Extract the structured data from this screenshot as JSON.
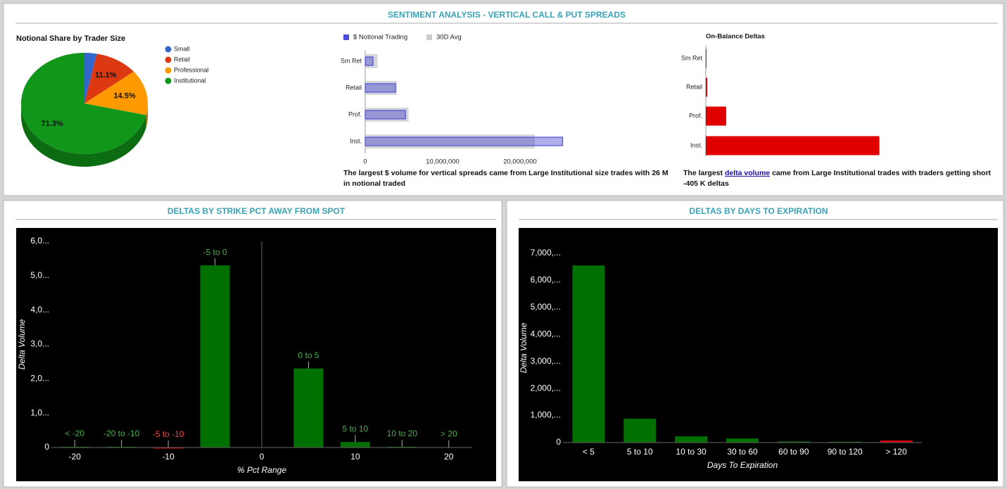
{
  "header": {
    "title": "SENTIMENT ANALYSIS - VERTICAL CALL & PUT SPREADS"
  },
  "chart_data": [
    {
      "type": "pie",
      "title": "Notional Share by Trader Size",
      "categories": [
        "Small",
        "Retail",
        "Professional",
        "Institutional"
      ],
      "values": [
        3.1,
        11.1,
        14.5,
        71.3
      ],
      "value_labels": [
        null,
        "11.1%",
        "14.5%",
        "71.3%"
      ],
      "colors": [
        "#3366cc",
        "#dc3912",
        "#ff9900",
        "#109618"
      ],
      "legend": "right"
    },
    {
      "type": "hbar",
      "categories": [
        "Sm Ret",
        "Retail",
        "Prof.",
        "Inst."
      ],
      "series": [
        {
          "name": "$ Notional Trading",
          "color": "#4c4cd8",
          "values": [
            1000000,
            3900000,
            5200000,
            25500000
          ]
        },
        {
          "name": "30D Avg",
          "color": "#cccccc",
          "values": [
            1600000,
            4100000,
            5600000,
            21900000
          ]
        }
      ],
      "xlim": [
        0,
        35000000
      ],
      "xticks": [
        0,
        {
          "value": 10000000,
          "label": "10,000,000"
        },
        {
          "value": 20000000,
          "label": "20,000,000"
        }
      ],
      "legend": "top",
      "note": "The largest $ volume for vertical spreads came from Large Institutional size trades with 26 M in notional traded"
    },
    {
      "type": "hbar",
      "title": "On-Balance Deltas",
      "categories": [
        "Sm Ret",
        "Retail",
        "Prof.",
        "Inst."
      ],
      "values": [
        1600,
        3300,
        47500,
        405000
      ],
      "colors": [
        "#0a7a0a",
        "#e00000",
        "#e00000",
        "#e00000"
      ],
      "xlim": [
        0,
        660000
      ],
      "note": {
        "before": "The largest",
        "link": "delta volume",
        "after": "came from Large Institutional trades with traders getting short -405 K deltas"
      }
    },
    {
      "type": "bar",
      "title": "DELTAS BY STRIKE PCT AWAY FROM SPOT",
      "x": [
        -20,
        -15,
        -10,
        -5,
        5,
        10,
        15,
        20
      ],
      "categories": [
        "< -20",
        "-20 to -10",
        "-5 to -10",
        "-5 to 0",
        "0 to 5",
        "5 to 10",
        "10 to 20",
        "> 20"
      ],
      "values": [
        20,
        20,
        -30,
        5300,
        2300,
        160,
        20,
        10
      ],
      "colors": [
        "#007000",
        "#007000",
        "#cc0000",
        "#007000",
        "#007000",
        "#007000",
        "#007000",
        "#007000"
      ],
      "label_colors": [
        "#4caf50",
        "#4caf50",
        "#ff4040",
        "#4caf50",
        "#4caf50",
        "#4caf50",
        "#4caf50",
        "#4caf50"
      ],
      "xlim": [
        -22.5,
        22.5
      ],
      "xticks": [
        -20,
        -10,
        0,
        10,
        20
      ],
      "ylim": [
        0,
        6000
      ],
      "yticks": [
        0,
        {
          "value": 1000,
          "label": "1,0..."
        },
        {
          "value": 2000,
          "label": "2,0..."
        },
        {
          "value": 3000,
          "label": "3,0..."
        },
        {
          "value": 4000,
          "label": "4,0..."
        },
        {
          "value": 5000,
          "label": "5,0..."
        },
        {
          "value": 6000,
          "label": "6,0..."
        }
      ],
      "x_label": "% Pct Range",
      "y_label": "Delta Volume"
    },
    {
      "type": "bar",
      "title": "DELTAS BY DAYS TO EXPIRATION",
      "categories": [
        "< 5",
        "5 to 10",
        "10 to 30",
        "30 to 60",
        "60 to 90",
        "90 to 120",
        "> 120"
      ],
      "values": [
        6550,
        880,
        230,
        150,
        40,
        30,
        80
      ],
      "colors": [
        "#007000",
        "#007000",
        "#007000",
        "#007000",
        "#007000",
        "#007000",
        "#cc0000"
      ],
      "ylim": [
        0,
        7000
      ],
      "yticks": [
        0,
        {
          "value": 1000,
          "label": "1,000,..."
        },
        {
          "value": 2000,
          "label": "2,000,..."
        },
        {
          "value": 3000,
          "label": "3,000,..."
        },
        {
          "value": 4000,
          "label": "4,000,..."
        },
        {
          "value": 5000,
          "label": "5,000,..."
        },
        {
          "value": 6000,
          "label": "6,000,..."
        },
        {
          "value": 7000,
          "label": "7,000,..."
        }
      ],
      "x_label": "Days To Expiration",
      "y_label": "Delta Volume"
    }
  ]
}
